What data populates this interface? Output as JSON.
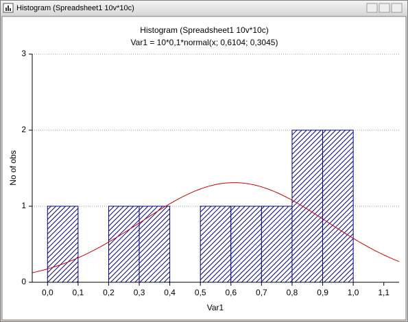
{
  "window": {
    "title": "Histogram (Spreadsheet1 10v*10c)"
  },
  "chart_data": {
    "type": "histogram",
    "title": "Histogram (Spreadsheet1 10v*10c)",
    "subtitle": "Var1 = 10*0,1*normal(x; 0,6104; 0,3045)",
    "x_label": "Var1",
    "y_label": "No of obs",
    "bins": [
      0,
      0.1,
      0.2,
      0.3,
      0.4,
      0.5,
      0.6,
      0.7,
      0.8,
      0.9,
      1.0
    ],
    "counts": [
      1,
      0,
      1,
      1,
      0,
      1,
      1,
      1,
      2,
      2
    ],
    "color": "#00007f",
    "fit": {
      "type": "normal",
      "count": 10,
      "bin_width": 0.1,
      "mean": 0.6104,
      "sd": 0.3045,
      "color": "#cc0000"
    },
    "xlim": [
      -0.05,
      1.15
    ],
    "xticks": [
      {
        "value": 0,
        "label": "0,0"
      },
      {
        "value": 0.1,
        "label": "0,1"
      },
      {
        "value": 0.2,
        "label": "0,2"
      },
      {
        "value": 0.3,
        "label": "0,3"
      },
      {
        "value": 0.4,
        "label": "0,4"
      },
      {
        "value": 0.5,
        "label": "0,5"
      },
      {
        "value": 0.6,
        "label": "0,6"
      },
      {
        "value": 0.7,
        "label": "0,7"
      },
      {
        "value": 0.8,
        "label": "0,8"
      },
      {
        "value": 0.9,
        "label": "0,9"
      },
      {
        "value": 1.0,
        "label": "1,0"
      },
      {
        "value": 1.1,
        "label": "1,1"
      }
    ],
    "ylim": [
      0,
      3
    ],
    "yticks": [
      0,
      1,
      2,
      3
    ],
    "grid": true
  }
}
